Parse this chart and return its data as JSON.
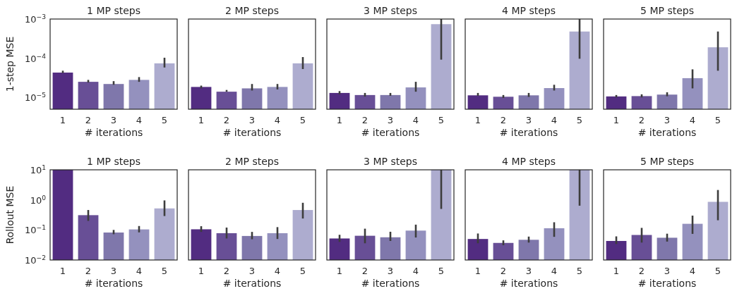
{
  "chart_data": [
    {
      "type": "bar",
      "title": "1 MP steps",
      "xlabel": "# iterations",
      "ylabel": "1-step MSE",
      "categories": [
        "1",
        "2",
        "3",
        "4",
        "5"
      ],
      "values": [
        4.3e-05,
        2.5e-05,
        2.2e-05,
        2.8e-05,
        7.4e-05
      ],
      "errors": [
        [
          4.2e-05,
          4.8e-05
        ],
        [
          2.4e-05,
          2.8e-05
        ],
        [
          2.1e-05,
          2.6e-05
        ],
        [
          2.5e-05,
          3.3e-05
        ],
        [
          5.8e-05,
          0.000103
        ]
      ],
      "colors": [
        "#522c81",
        "#684f96",
        "#7f77ab",
        "#9491be",
        "#adaccf"
      ],
      "log": "y",
      "ylim": [
        5e-06,
        0.001
      ],
      "yticks": [
        {
          "value": 1e-05,
          "label": "10$^{−5}$"
        },
        {
          "value": 0.0001,
          "label": "10$^{−4}$"
        },
        {
          "value": 0.001,
          "label": "10$^{−3}$"
        }
      ],
      "grid": false
    },
    {
      "type": "bar",
      "title": "2 MP steps",
      "xlabel": "# iterations",
      "categories": [
        "1",
        "2",
        "3",
        "4",
        "5"
      ],
      "values": [
        1.85e-05,
        1.4e-05,
        1.7e-05,
        1.85e-05,
        7.4e-05
      ],
      "errors": [
        [
          1.7e-05,
          2e-05
        ],
        [
          1.4e-05,
          1.55e-05
        ],
        [
          1.5e-05,
          2.2e-05
        ],
        [
          1.6e-05,
          2.2e-05
        ],
        [
          5.3e-05,
          0.000107
        ]
      ],
      "colors": [
        "#522c81",
        "#684f96",
        "#7f77ab",
        "#9491be",
        "#adaccf"
      ],
      "log": "y",
      "ylim": [
        5e-06,
        0.001
      ],
      "tick_labels": "x",
      "grid": false
    },
    {
      "type": "bar",
      "title": "3 MP steps",
      "xlabel": "# iterations",
      "categories": [
        "1",
        "2",
        "3",
        "4",
        "5"
      ],
      "values": [
        1.3e-05,
        1.15e-05,
        1.15e-05,
        1.8e-05,
        0.00074
      ],
      "errors": [
        [
          1.2e-05,
          1.45e-05
        ],
        [
          1.05e-05,
          1.3e-05
        ],
        [
          1.1e-05,
          1.3e-05
        ],
        [
          1.4e-05,
          2.5e-05
        ],
        [
          9.2e-05,
          0.001
        ]
      ],
      "colors": [
        "#522c81",
        "#684f96",
        "#7f77ab",
        "#9491be",
        "#adaccf"
      ],
      "log": "y",
      "ylim": [
        5e-06,
        0.001
      ],
      "tick_labels": "x",
      "grid": false
    },
    {
      "type": "bar",
      "title": "4 MP steps",
      "xlabel": "# iterations",
      "categories": [
        "1",
        "2",
        "3",
        "4",
        "5"
      ],
      "values": [
        1.13e-05,
        1.04e-05,
        1.13e-05,
        1.73e-05,
        0.00048
      ],
      "errors": [
        [
          1.1e-05,
          1.3e-05
        ],
        [
          9.7e-06,
          1.15e-05
        ],
        [
          1.03e-05,
          1.3e-05
        ],
        [
          1.5e-05,
          2.1e-05
        ],
        [
          9.7e-05,
          0.001
        ]
      ],
      "colors": [
        "#522c81",
        "#684f96",
        "#7f77ab",
        "#9491be",
        "#adaccf"
      ],
      "log": "y",
      "ylim": [
        5e-06,
        0.001
      ],
      "tick_labels": "x",
      "grid": false
    },
    {
      "type": "bar",
      "title": "5 MP steps",
      "xlabel": "# iterations",
      "categories": [
        "1",
        "2",
        "3",
        "4",
        "5"
      ],
      "values": [
        1.06e-05,
        1.08e-05,
        1.18e-05,
        3.1e-05,
        0.00019
      ],
      "errors": [
        [
          1e-05,
          1.15e-05
        ],
        [
          1e-05,
          1.2e-05
        ],
        [
          1.07e-05,
          1.35e-05
        ],
        [
          1.7e-05,
          5.2e-05
        ],
        [
          4.8e-05,
          0.00048
        ]
      ],
      "colors": [
        "#522c81",
        "#684f96",
        "#7f77ab",
        "#9491be",
        "#adaccf"
      ],
      "log": "y",
      "ylim": [
        5e-06,
        0.001
      ],
      "tick_labels": "x",
      "grid": false
    },
    {
      "type": "bar",
      "title": "1 MP steps",
      "xlabel": "# iterations",
      "ylabel": "Rollout MSE",
      "categories": [
        "1",
        "2",
        "3",
        "4",
        "5"
      ],
      "values": [
        10,
        0.31,
        0.082,
        0.104,
        0.52
      ],
      "errors": [
        null,
        [
          0.2,
          0.46
        ],
        [
          0.072,
          0.1
        ],
        [
          0.083,
          0.135
        ],
        [
          0.29,
          0.96
        ]
      ],
      "colors": [
        "#522c81",
        "#684f96",
        "#7f77ab",
        "#9491be",
        "#adaccf"
      ],
      "log": "y",
      "ylim": [
        0.01,
        10
      ],
      "yticks": [
        {
          "value": 0.01,
          "label": "10$^{−2}$"
        },
        {
          "value": 0.1,
          "label": "10$^{−1}$"
        },
        {
          "value": 1,
          "label": "10$^{0}$"
        },
        {
          "value": 10,
          "label": "10$^{1}$"
        }
      ],
      "grid": false
    },
    {
      "type": "bar",
      "title": "2 MP steps",
      "xlabel": "# iterations",
      "categories": [
        "1",
        "2",
        "3",
        "4",
        "5"
      ],
      "values": [
        0.105,
        0.078,
        0.063,
        0.078,
        0.46
      ],
      "errors": [
        [
          0.086,
          0.133
        ],
        [
          0.052,
          0.12
        ],
        [
          0.049,
          0.086
        ],
        [
          0.05,
          0.124
        ],
        [
          0.24,
          0.8
        ]
      ],
      "colors": [
        "#522c81",
        "#684f96",
        "#7f77ab",
        "#9491be",
        "#adaccf"
      ],
      "log": "y",
      "ylim": [
        0.01,
        10
      ],
      "tick_labels": "x",
      "grid": false
    },
    {
      "type": "bar",
      "title": "3 MP steps",
      "xlabel": "# iterations",
      "categories": [
        "1",
        "2",
        "3",
        "4",
        "5"
      ],
      "values": [
        0.052,
        0.064,
        0.057,
        0.095,
        10
      ],
      "errors": [
        [
          0.04,
          0.069
        ],
        [
          0.036,
          0.11
        ],
        [
          0.043,
          0.087
        ],
        [
          0.056,
          0.15
        ],
        [
          0.5,
          10
        ]
      ],
      "colors": [
        "#522c81",
        "#684f96",
        "#7f77ab",
        "#9491be",
        "#adaccf"
      ],
      "log": "y",
      "ylim": [
        0.01,
        10
      ],
      "tick_labels": "x",
      "grid": false
    },
    {
      "type": "bar",
      "title": "4 MP steps",
      "xlabel": "# iterations",
      "categories": [
        "1",
        "2",
        "3",
        "4",
        "5"
      ],
      "values": [
        0.05,
        0.037,
        0.047,
        0.114,
        10
      ],
      "errors": [
        [
          0.036,
          0.076
        ],
        [
          0.031,
          0.045
        ],
        [
          0.038,
          0.06
        ],
        [
          0.059,
          0.18
        ],
        [
          0.64,
          10
        ]
      ],
      "colors": [
        "#522c81",
        "#684f96",
        "#7f77ab",
        "#9491be",
        "#adaccf"
      ],
      "log": "y",
      "ylim": [
        0.01,
        10
      ],
      "tick_labels": "x",
      "grid": false
    },
    {
      "type": "bar",
      "title": "5 MP steps",
      "xlabel": "# iterations",
      "categories": [
        "1",
        "2",
        "3",
        "4",
        "5"
      ],
      "values": [
        0.043,
        0.068,
        0.055,
        0.16,
        0.86
      ],
      "errors": [
        [
          0.034,
          0.061
        ],
        [
          0.038,
          0.117
        ],
        [
          0.041,
          0.075
        ],
        [
          0.074,
          0.3
        ],
        [
          0.21,
          2.13
        ]
      ],
      "colors": [
        "#522c81",
        "#684f96",
        "#7f77ab",
        "#9491be",
        "#adaccf"
      ],
      "log": "y",
      "ylim": [
        0.01,
        10
      ],
      "tick_labels": "x",
      "grid": false
    }
  ]
}
